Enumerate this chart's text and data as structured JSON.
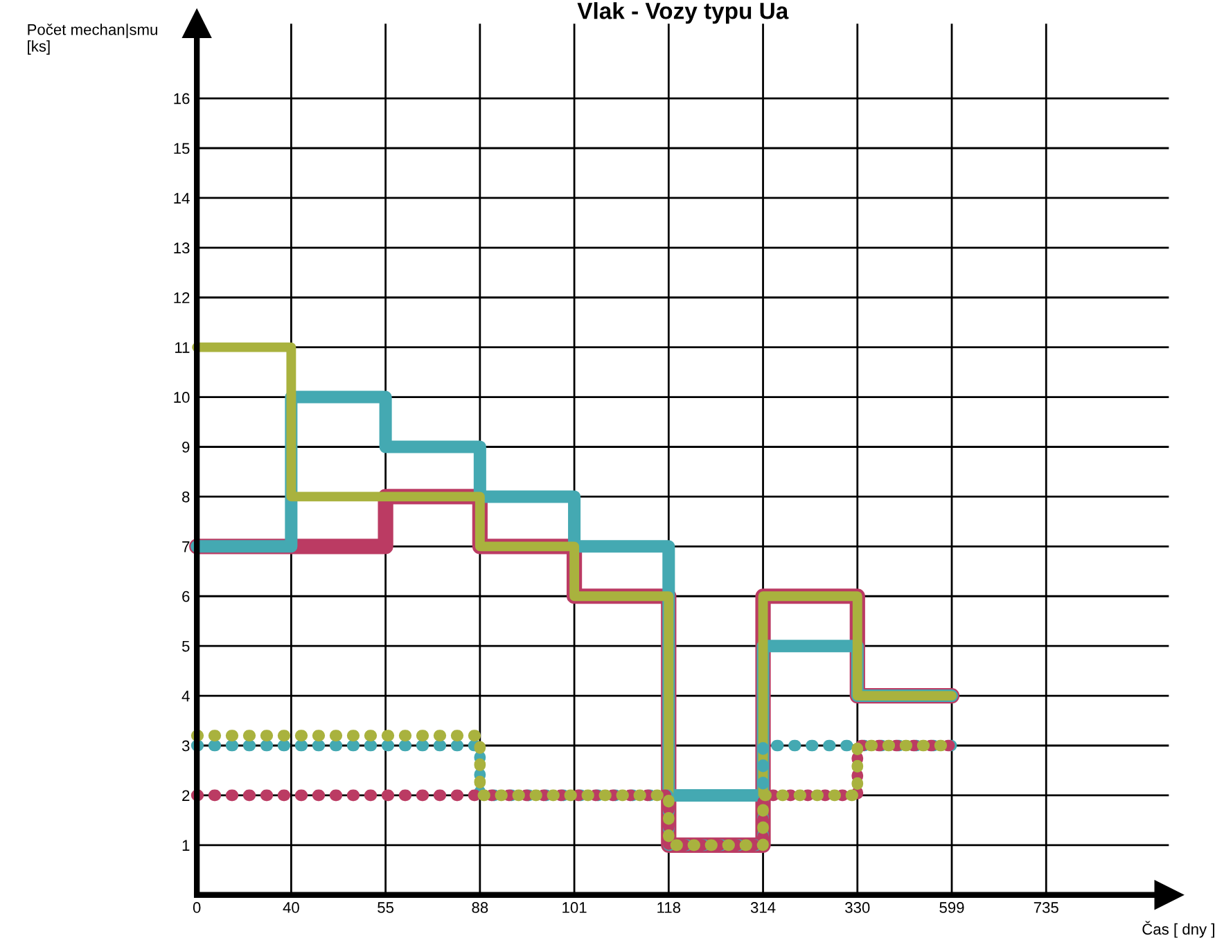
{
  "chart_data": {
    "type": "step",
    "title": "Vlak - Vozy typu Ua",
    "xlabel": "Čas [ dny ]",
    "ylabel": "Počet mechan|smu\n[ks]",
    "categories": [
      "0",
      "40",
      "55",
      "88",
      "101",
      "118",
      "314",
      "330",
      "599",
      "735"
    ],
    "ylim": [
      0,
      17.5
    ],
    "yticks": [
      1,
      2,
      3,
      4,
      5,
      6,
      7,
      8,
      9,
      10,
      11,
      12,
      13,
      14,
      15,
      16
    ],
    "grid": true,
    "legend": false,
    "series": [
      {
        "color": "#bb3b63",
        "line_style": "solid",
        "values": [
          7,
          7,
          8,
          7,
          6,
          1,
          6,
          4,
          4,
          null
        ]
      },
      {
        "color": "#44a9b2",
        "line_style": "solid",
        "values": [
          7,
          10,
          9,
          8,
          7,
          2,
          5,
          4,
          4,
          null
        ]
      },
      {
        "color": "#a9b23e",
        "line_style": "solid",
        "values": [
          11,
          8,
          8,
          7,
          6,
          1,
          6,
          4,
          4,
          null
        ]
      },
      {
        "color": "#44a9b2",
        "line_style": "dotted",
        "values": [
          3,
          3,
          3,
          2,
          2,
          1,
          3,
          3,
          3,
          null
        ]
      },
      {
        "color": "#bb3b63",
        "line_style": "dotted",
        "values": [
          2,
          2,
          2,
          2,
          2,
          1,
          2,
          3,
          3,
          null
        ]
      },
      {
        "color": "#a9b23e",
        "line_style": "dotted",
        "values": [
          3.2,
          3.2,
          3.2,
          2,
          2,
          1,
          2,
          3,
          3,
          null
        ]
      }
    ]
  }
}
